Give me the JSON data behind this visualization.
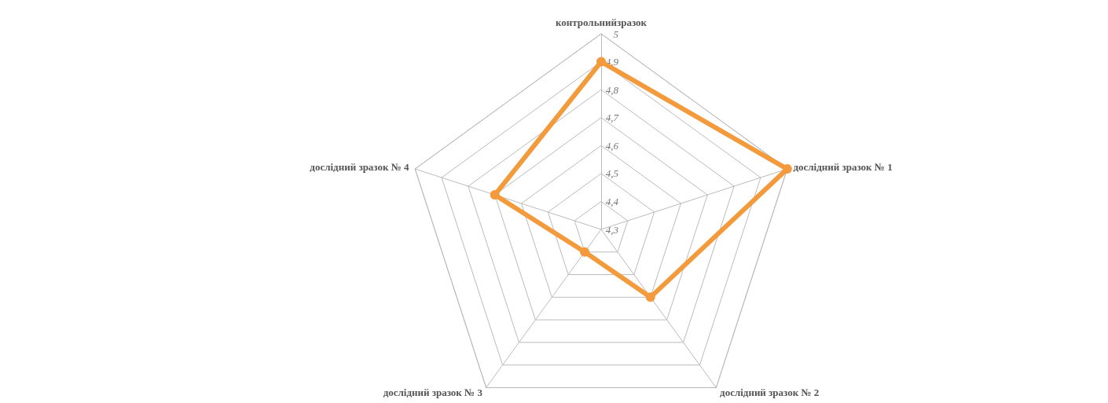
{
  "chart_data": {
    "type": "radar",
    "categories": [
      "контрольнийзразок",
      "дослідний зразок № 1",
      "дослідний зразок № 2",
      "дослідний зразок № 3",
      "дослідний зразок № 4"
    ],
    "series": [
      {
        "color": "#f39a3c",
        "values": [
          4.9,
          5,
          4.6,
          4.4,
          4.7
        ]
      }
    ],
    "ylim": [
      4.3,
      5
    ],
    "yticks": [
      {
        "value": 4.3,
        "label": "4,3"
      },
      {
        "value": 4.4,
        "label": "4,4"
      },
      {
        "value": 4.5,
        "label": "4,5"
      },
      {
        "value": 4.6,
        "label": "4,6"
      },
      {
        "value": 4.7,
        "label": "4,7"
      },
      {
        "value": 4.8,
        "label": "4,8"
      },
      {
        "value": 4.9,
        "label": "4,9"
      },
      {
        "value": 5,
        "label": "5"
      }
    ],
    "marker": "circle"
  }
}
